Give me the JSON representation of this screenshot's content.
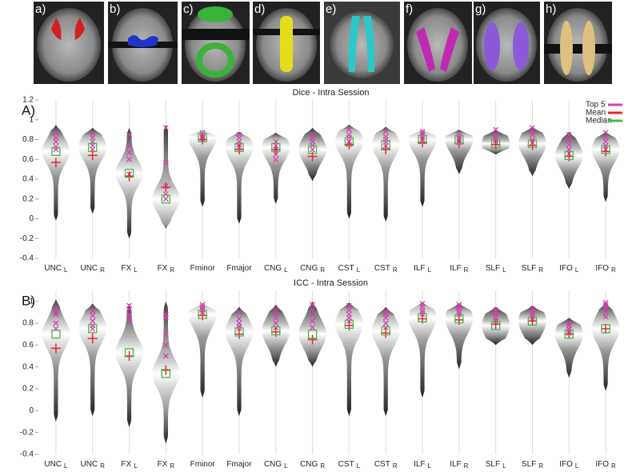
{
  "panels": {
    "labels": [
      "a)",
      "b)",
      "c)",
      "d)",
      "e)",
      "f)",
      "g)",
      "h)"
    ]
  },
  "chart_data": [
    {
      "type": "violin",
      "panel": "A)",
      "title": "Dice - Intra Session",
      "categories": [
        "UNC",
        "UNC",
        "FX",
        "FX",
        "Fminor",
        "Fmajor",
        "CNG",
        "CNG",
        "CST",
        "CST",
        "ILF",
        "ILF",
        "SLF",
        "SLF",
        "IFO",
        "IFO"
      ],
      "category_subscripts": [
        "L",
        "R",
        "L",
        "R",
        null,
        null,
        "L",
        "R",
        "L",
        "R",
        "L",
        "R",
        "L",
        "R",
        "L",
        "R"
      ],
      "ylim": [
        -0.4,
        1.2
      ],
      "yticks": [
        -0.4,
        -0.2,
        0,
        0.2,
        0.4,
        0.6,
        0.8,
        1,
        1.2
      ],
      "grid": true,
      "legend": "upper right",
      "ranges": [
        [
          -0.02,
          0.95
        ],
        [
          0.05,
          0.92
        ],
        [
          -0.2,
          0.92
        ],
        [
          -0.1,
          0.95
        ],
        [
          0.12,
          0.9
        ],
        [
          -0.05,
          0.88
        ],
        [
          0.15,
          0.87
        ],
        [
          0.38,
          0.92
        ],
        [
          0,
          0.95
        ],
        [
          -0.03,
          0.93
        ],
        [
          0.12,
          0.9
        ],
        [
          0.45,
          0.9
        ],
        [
          0.65,
          0.9
        ],
        [
          0.43,
          0.93
        ],
        [
          0.3,
          0.88
        ],
        [
          0.17,
          0.88
        ]
      ],
      "series": [
        {
          "name": "Top 5",
          "color": "#d63fb0",
          "values": [
            [
              0.87,
              0.82,
              0.78,
              0.73,
              0.7
            ],
            [
              0.86,
              0.82,
              0.78,
              0.74,
              0.7
            ],
            [
              0.85,
              0.73,
              0.67,
              0.6,
              0.45
            ],
            [
              0.92,
              0.57,
              0.33,
              0.25,
              0.2
            ],
            [
              0.87,
              0.85,
              0.83,
              0.82,
              0.8
            ],
            [
              0.85,
              0.82,
              0.78,
              0.75,
              0.73
            ],
            [
              0.78,
              0.74,
              0.7,
              0.65,
              0.6
            ],
            [
              0.85,
              0.82,
              0.78,
              0.74,
              0.7
            ],
            [
              0.9,
              0.85,
              0.82,
              0.78,
              0.75
            ],
            [
              0.88,
              0.83,
              0.8,
              0.77,
              0.74
            ],
            [
              0.88,
              0.86,
              0.84,
              0.82,
              0.8
            ],
            [
              0.85,
              0.83,
              0.81,
              0.79,
              0.77
            ],
            [
              0.9,
              0.85,
              0.82,
              0.8,
              0.78
            ],
            [
              0.92,
              0.88,
              0.85,
              0.8,
              0.77
            ],
            [
              0.85,
              0.8,
              0.75,
              0.7,
              0.66
            ],
            [
              0.87,
              0.82,
              0.78,
              0.74,
              0.7
            ]
          ]
        },
        {
          "name": "Mean",
          "color": "#e8243c",
          "values": [
            0.57,
            0.64,
            0.43,
            0.32,
            0.8,
            0.7,
            0.7,
            0.63,
            0.75,
            0.7,
            0.77,
            0.76,
            0.75,
            0.74,
            0.63,
            0.68
          ]
        },
        {
          "name": "Median",
          "color": "#4cb648",
          "values": [
            0.68,
            0.72,
            0.46,
            0.2,
            0.82,
            0.72,
            0.72,
            0.7,
            0.78,
            0.75,
            0.8,
            0.8,
            0.76,
            0.76,
            0.64,
            0.7
          ]
        }
      ]
    },
    {
      "type": "violin",
      "panel": "B)",
      "title": "ICC - Intra Session",
      "categories": [
        "UNC",
        "UNC",
        "FX",
        "FX",
        "Fminor",
        "Fmajor",
        "CNG",
        "CNG",
        "CST",
        "CST",
        "ILF",
        "ILF",
        "SLF",
        "SLF",
        "IFO",
        "IFO"
      ],
      "category_subscripts": [
        "L",
        "R",
        "L",
        "R",
        null,
        null,
        "L",
        "R",
        "L",
        "R",
        "L",
        "R",
        "L",
        "R",
        "L",
        "R"
      ],
      "ylim": [
        -0.4,
        1.1
      ],
      "yticks": [
        -0.4,
        -0.2,
        0,
        0.2,
        0.4,
        0.6,
        0.8,
        1
      ],
      "grid": true,
      "ranges": [
        [
          -0.1,
          1.02
        ],
        [
          -0.05,
          0.98
        ],
        [
          -0.15,
          0.98
        ],
        [
          -0.3,
          1
        ],
        [
          0.12,
          0.98
        ],
        [
          -0.05,
          0.95
        ],
        [
          0.4,
          0.97
        ],
        [
          0.4,
          1
        ],
        [
          -0.05,
          0.99
        ],
        [
          -0.05,
          0.95
        ],
        [
          0.12,
          0.99
        ],
        [
          0.38,
          0.98
        ],
        [
          0.6,
          0.95
        ],
        [
          0.6,
          0.96
        ],
        [
          0.3,
          0.85
        ],
        [
          0.18,
          0.99
        ]
      ],
      "series": [
        {
          "color": "#d63fb0",
          "values": [
            [
              0.93,
              0.9,
              0.88,
              0.8,
              0.75
            ],
            [
              0.91,
              0.87,
              0.82,
              0.78,
              0.75
            ],
            [
              0.96,
              0.93,
              0.88,
              0.85,
              0.82
            ],
            [
              0.88,
              0.85,
              0.7,
              0.6,
              0.5
            ],
            [
              0.97,
              0.95,
              0.93,
              0.92,
              0.9
            ],
            [
              0.9,
              0.84,
              0.8,
              0.77,
              0.75
            ],
            [
              0.92,
              0.89,
              0.85,
              0.8,
              0.76
            ],
            [
              0.97,
              0.92,
              0.88,
              0.82,
              0.76
            ],
            [
              0.96,
              0.92,
              0.88,
              0.85,
              0.82
            ],
            [
              0.9,
              0.88,
              0.85,
              0.8,
              0.76
            ],
            [
              0.98,
              0.95,
              0.92,
              0.9,
              0.88
            ],
            [
              0.97,
              0.95,
              0.93,
              0.9,
              0.88
            ],
            [
              0.92,
              0.9,
              0.88,
              0.85,
              0.82
            ],
            [
              0.93,
              0.9,
              0.88,
              0.86,
              0.84
            ],
            [
              0.8,
              0.78,
              0.75,
              0.73,
              0.71
            ],
            [
              0.99,
              0.97,
              0.95,
              0.9,
              0.86
            ]
          ]
        },
        {
          "color": "#e8243c",
          "values": [
            0.57,
            0.66,
            0.5,
            0.37,
            0.87,
            0.7,
            0.72,
            0.65,
            0.78,
            0.71,
            0.84,
            0.83,
            0.79,
            0.82,
            0.7,
            0.75
          ]
        },
        {
          "color": "#4cb648",
          "values": [
            0.7,
            0.75,
            0.53,
            0.34,
            0.88,
            0.72,
            0.73,
            0.7,
            0.79,
            0.73,
            0.85,
            0.84,
            0.78,
            0.82,
            0.7,
            0.75
          ]
        }
      ]
    }
  ]
}
